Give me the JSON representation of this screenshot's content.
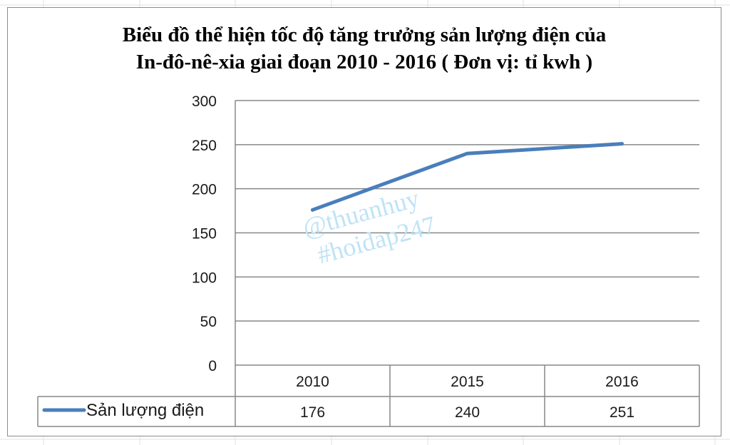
{
  "chart_data": {
    "type": "line",
    "title_lines": [
      "Biểu đồ thể hiện tốc độ tăng trưởng sản lượng điện của",
      "In-đô-nê-xia  giai đoạn 2010 - 2016 ( Đơn vị: tỉ kwh )"
    ],
    "categories": [
      "2010",
      "2015",
      "2016"
    ],
    "series": [
      {
        "name": "Sản lượng điện",
        "values": [
          176,
          240,
          251
        ],
        "color": "#4a7ebb"
      }
    ],
    "ylim": [
      0,
      300
    ],
    "yticks": [
      0,
      50,
      100,
      150,
      200,
      250,
      300
    ],
    "grid": true,
    "legend": "data-table-bottom",
    "xlabel": "",
    "ylabel": ""
  },
  "watermark": {
    "lines": [
      "@thuanhuy",
      "#hoidap247"
    ]
  }
}
